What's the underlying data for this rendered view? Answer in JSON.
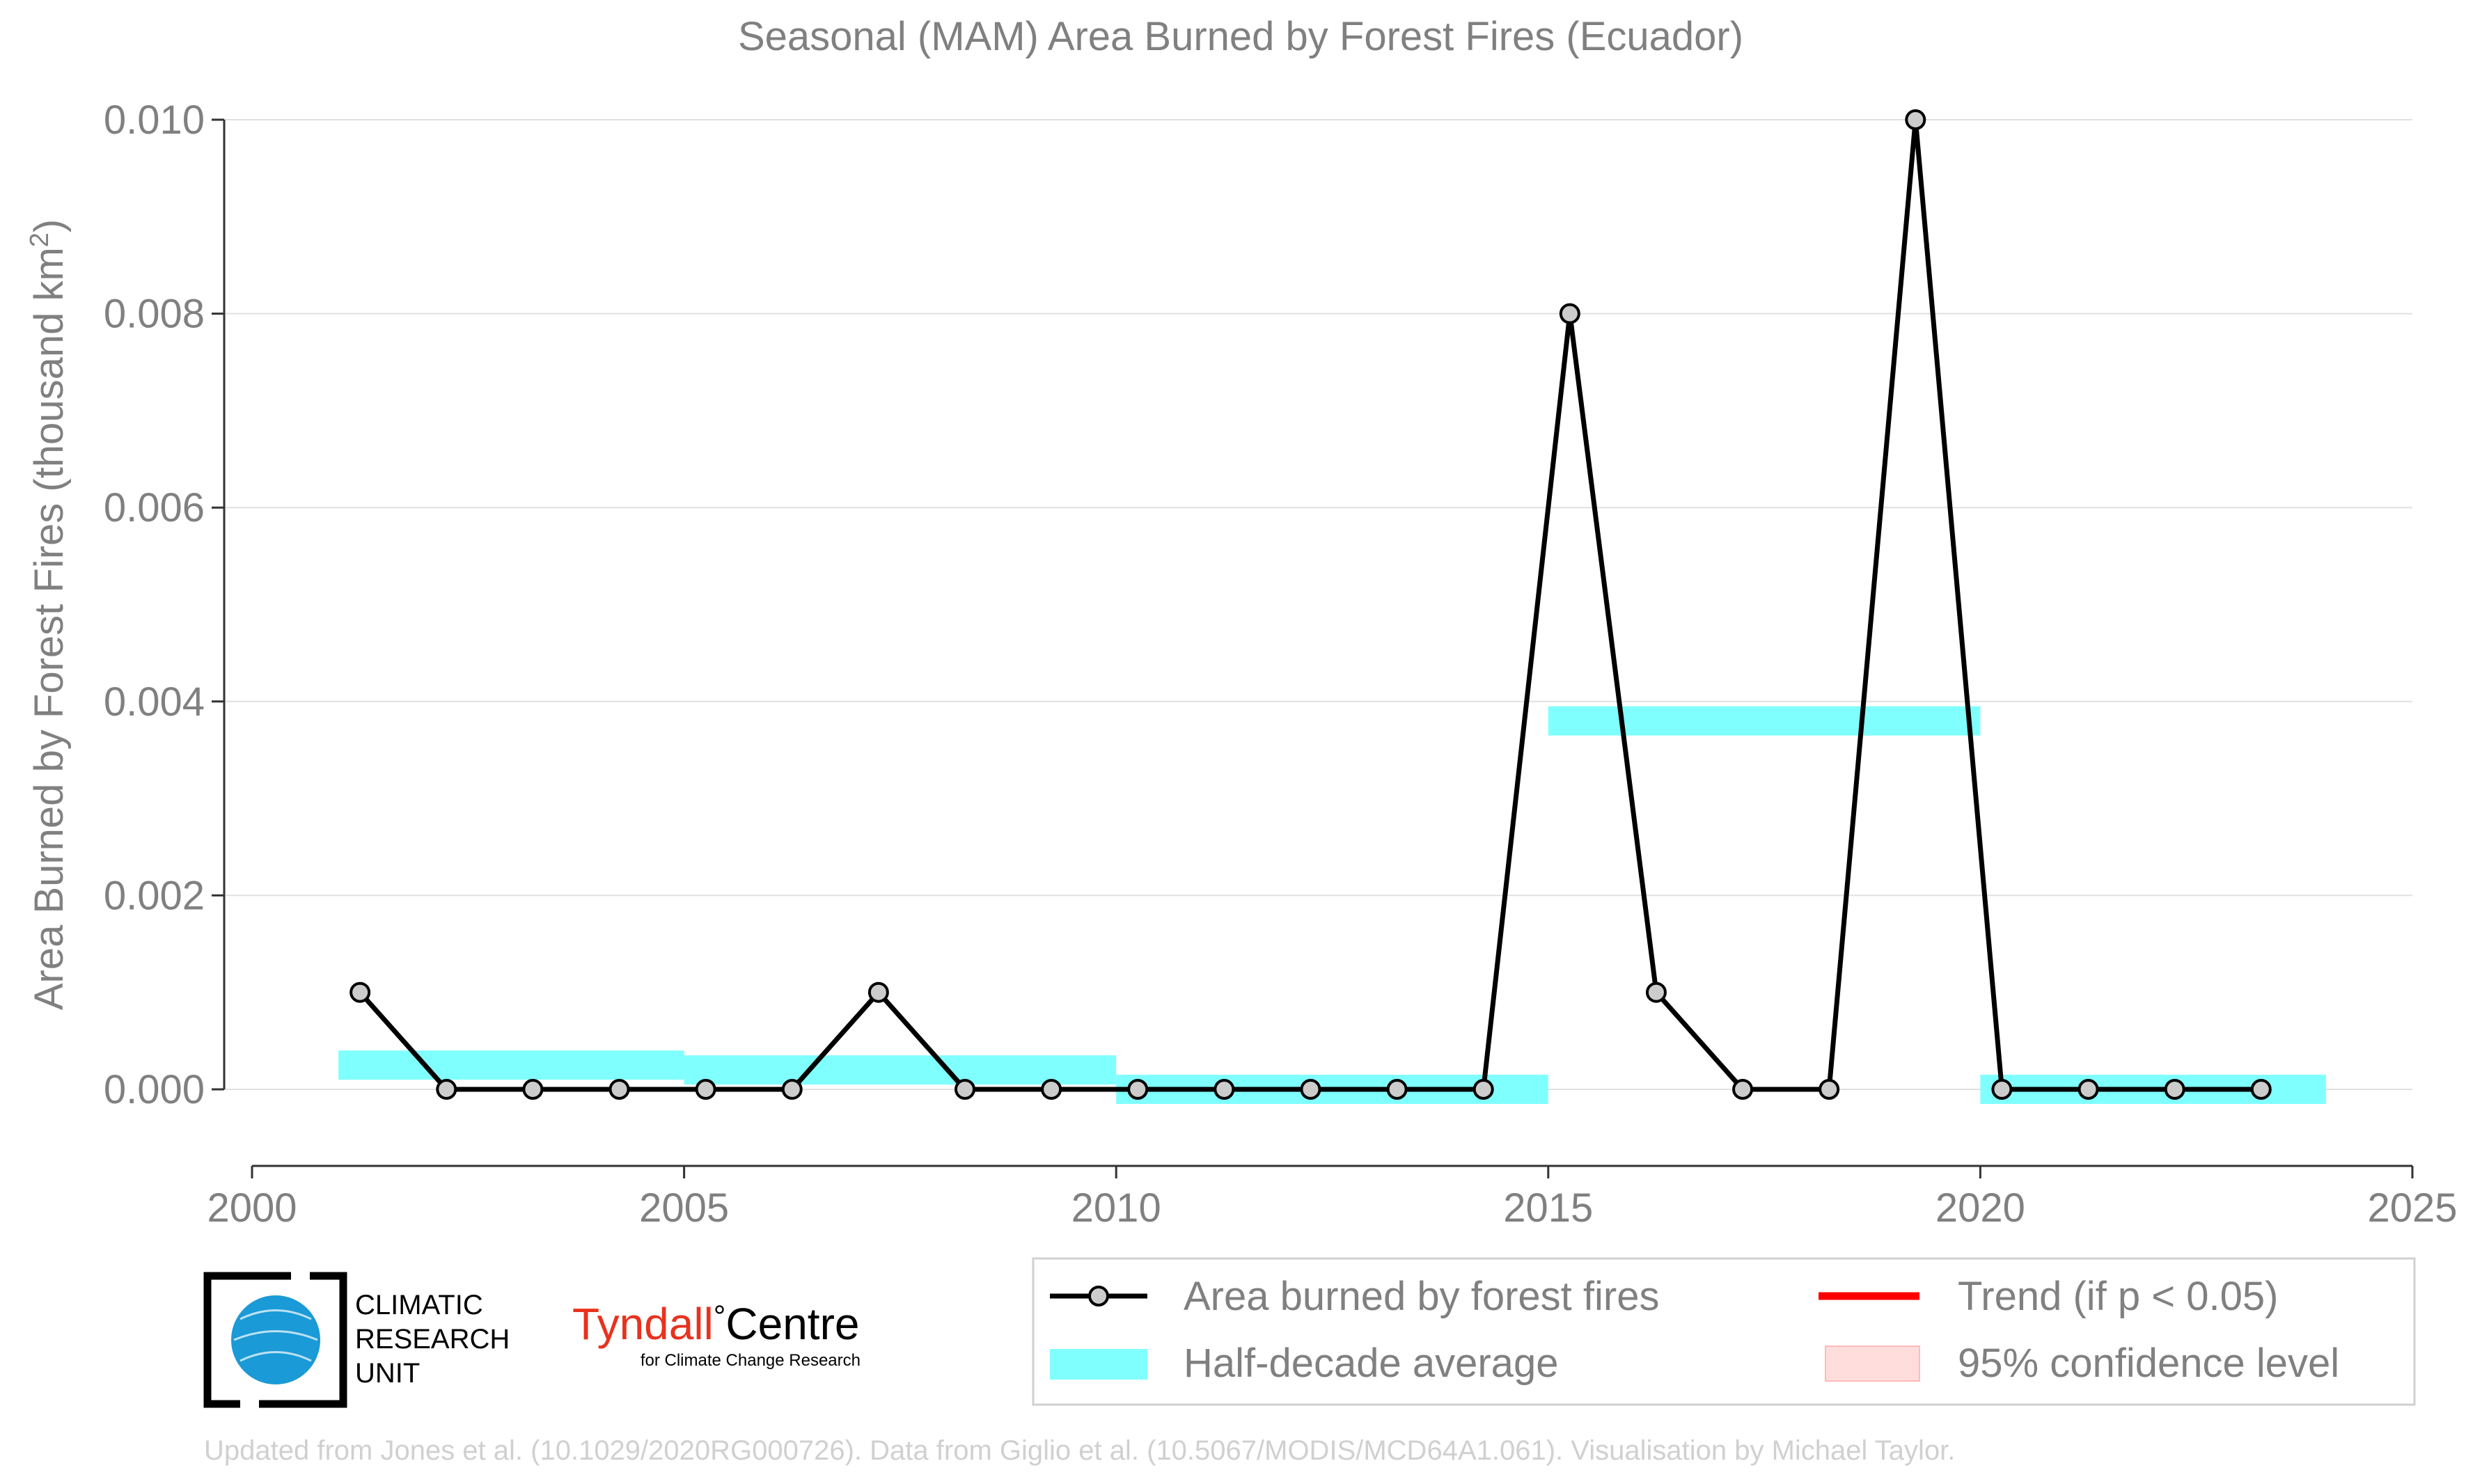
{
  "chart_data": {
    "type": "line",
    "title": "Seasonal (MAM) Area Burned by Forest Fires (Ecuador)",
    "ylabel": "Area Burned by Forest Fires (thousand km",
    "ylabel_sup": "2",
    "ylabel_close": ")",
    "xlabel": "",
    "xlim": [
      2000,
      2025
    ],
    "ylim": [
      -0.00075,
      0.0101
    ],
    "x_ticks": [
      2000,
      2005,
      2010,
      2015,
      2020,
      2025
    ],
    "x_tick_labels": [
      "2000",
      "2005",
      "2010",
      "2015",
      "2020",
      "2025"
    ],
    "y_ticks": [
      0.0,
      0.002,
      0.004,
      0.006,
      0.008,
      0.01
    ],
    "y_tick_labels": [
      "0.000",
      "0.002",
      "0.004",
      "0.006",
      "0.008",
      "0.010"
    ],
    "grid": "horizontal",
    "series": [
      {
        "name": "Area burned by forest fires",
        "color": "#000000",
        "marker_fill": "#cccccc",
        "x": [
          2001.25,
          2002.25,
          2003.25,
          2004.25,
          2005.25,
          2006.25,
          2007.25,
          2008.25,
          2009.25,
          2010.25,
          2011.25,
          2012.25,
          2013.25,
          2014.25,
          2015.25,
          2016.25,
          2017.25,
          2018.25,
          2019.25,
          2020.25,
          2021.25,
          2022.25,
          2023.25
        ],
        "values": [
          0.001,
          0.0,
          0.0,
          0.0,
          0.0,
          0.0,
          0.001,
          0.0,
          0.0,
          0.0,
          0.0,
          0.0,
          0.0,
          0.0,
          0.008,
          0.001,
          0.0,
          0.0,
          0.01,
          0.0,
          0.0,
          0.0,
          0.0
        ]
      }
    ],
    "half_decade_average": {
      "name": "Half-decade average",
      "color": "#80ffff",
      "bands": [
        {
          "x0": 2001,
          "x1": 2005,
          "y": 0.00025
        },
        {
          "x0": 2005,
          "x1": 2010,
          "y": 0.0002
        },
        {
          "x0": 2010,
          "x1": 2015,
          "y": 0.0
        },
        {
          "x0": 2015,
          "x1": 2020,
          "y": 0.0038
        },
        {
          "x0": 2020,
          "x1": 2024,
          "y": 0.0
        }
      ]
    },
    "legend": {
      "placement": "bottom-right",
      "entries": [
        {
          "label": "Area burned by forest fires",
          "kind": "line-marker",
          "color": "#000000"
        },
        {
          "label": "Trend (if p < 0.05)",
          "kind": "line",
          "color": "#ff0000"
        },
        {
          "label": "Half-decade average",
          "kind": "band",
          "color": "#80ffff"
        },
        {
          "label": "95% confidence level",
          "kind": "patch",
          "color": "#ffdddd"
        }
      ]
    }
  },
  "logos": {
    "cru_lines": [
      "CLIMATIC",
      "RESEARCH",
      "UNIT"
    ],
    "tyndall_name": "Tyndall",
    "tyndall_degree": "°",
    "tyndall_centre": "Centre",
    "tyndall_sub": "for Climate Change Research",
    "tyndall_color": "#e8321e"
  },
  "footer": {
    "credit": "Updated from Jones et al. (10.1029/2020RG000726). Data from Giglio et al. (10.5067/MODIS/MCD64A1.061). Visualisation by Michael Taylor."
  },
  "colors": {
    "axis_text": "#808080",
    "grid": "#e0e0e0",
    "footer_text": "#d0d0d0"
  }
}
